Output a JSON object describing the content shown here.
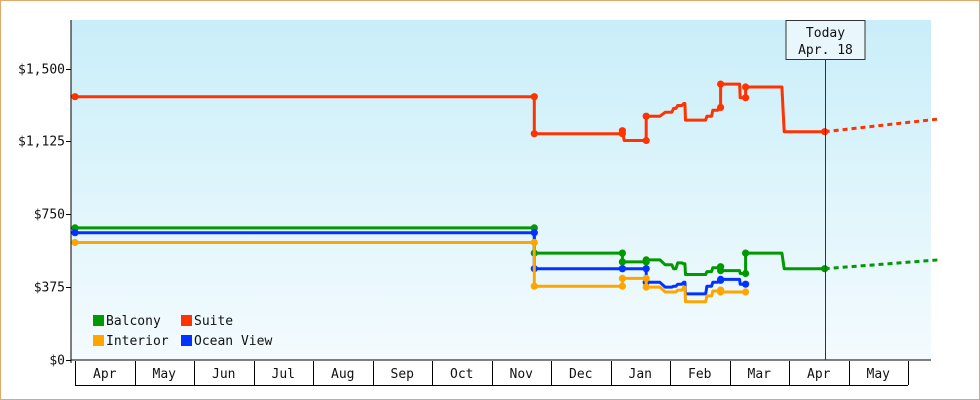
{
  "chart_data": {
    "type": "line",
    "y_ticks": [
      {
        "value": 0,
        "label": "$0"
      },
      {
        "value": 375,
        "label": "$375"
      },
      {
        "value": 750,
        "label": "$750"
      },
      {
        "value": 1125,
        "label": "$1,125"
      },
      {
        "value": 1500,
        "label": "$1,500"
      }
    ],
    "ylim": [
      0,
      1750
    ],
    "x_months": [
      "Apr",
      "May",
      "Jun",
      "Jul",
      "Aug",
      "Sep",
      "Oct",
      "Nov",
      "Dec",
      "Jan",
      "Feb",
      "Mar",
      "Apr",
      "May"
    ],
    "grid": false,
    "legend": {
      "placement": "bottom-left",
      "entries": [
        {
          "series": "Balcony",
          "label": "Balcony"
        },
        {
          "series": "Suite",
          "label": "Suite"
        },
        {
          "series": "Interior",
          "label": "Interior"
        },
        {
          "series": "Ocean View",
          "label": "Ocean View"
        }
      ]
    },
    "today": {
      "line1": "Today",
      "line2": "Apr. 18",
      "x": 12.6
    },
    "series": [
      {
        "name": "Suite",
        "color": "#ff3300",
        "points": [
          [
            0,
            1355
          ],
          [
            7.72,
            1355
          ],
          [
            7.72,
            1165
          ],
          [
            9.2,
            1165
          ],
          [
            9.2,
            1180
          ],
          [
            9.23,
            1130
          ],
          [
            9.37,
            1130
          ],
          [
            9.6,
            1130
          ],
          [
            9.6,
            1255
          ],
          [
            9.68,
            1255
          ],
          [
            9.83,
            1255
          ],
          [
            9.92,
            1275
          ],
          [
            10.03,
            1275
          ],
          [
            10.06,
            1295
          ],
          [
            10.1,
            1295
          ],
          [
            10.13,
            1310
          ],
          [
            10.2,
            1310
          ],
          [
            10.23,
            1320
          ],
          [
            10.25,
            1320
          ],
          [
            10.26,
            1235
          ],
          [
            10.45,
            1235
          ],
          [
            10.6,
            1235
          ],
          [
            10.62,
            1255
          ],
          [
            10.7,
            1255
          ],
          [
            10.72,
            1285
          ],
          [
            10.8,
            1285
          ],
          [
            10.83,
            1300
          ],
          [
            10.85,
            1300
          ],
          [
            10.85,
            1420
          ],
          [
            10.98,
            1420
          ],
          [
            11.17,
            1420
          ],
          [
            11.18,
            1350
          ],
          [
            11.27,
            1350
          ],
          [
            11.27,
            1405
          ],
          [
            11.4,
            1405
          ],
          [
            11.88,
            1405
          ],
          [
            11.92,
            1175
          ],
          [
            12.6,
            1175
          ]
        ],
        "projection": [
          [
            12.6,
            1175
          ],
          [
            14.5,
            1240
          ]
        ]
      },
      {
        "name": "Balcony",
        "color": "#009900",
        "points": [
          [
            0,
            680
          ],
          [
            7.72,
            680
          ],
          [
            7.72,
            550
          ],
          [
            9.2,
            550
          ],
          [
            9.2,
            505
          ],
          [
            9.37,
            505
          ],
          [
            9.6,
            505
          ],
          [
            9.6,
            515
          ],
          [
            9.68,
            515
          ],
          [
            9.83,
            515
          ],
          [
            9.92,
            490
          ],
          [
            10.03,
            490
          ],
          [
            10.06,
            470
          ],
          [
            10.1,
            470
          ],
          [
            10.13,
            500
          ],
          [
            10.2,
            500
          ],
          [
            10.23,
            495
          ],
          [
            10.25,
            495
          ],
          [
            10.26,
            440
          ],
          [
            10.45,
            440
          ],
          [
            10.6,
            440
          ],
          [
            10.62,
            455
          ],
          [
            10.7,
            455
          ],
          [
            10.72,
            475
          ],
          [
            10.8,
            475
          ],
          [
            10.83,
            480
          ],
          [
            10.85,
            480
          ],
          [
            10.85,
            460
          ],
          [
            10.98,
            460
          ],
          [
            11.17,
            460
          ],
          [
            11.18,
            445
          ],
          [
            11.27,
            445
          ],
          [
            11.27,
            550
          ],
          [
            11.4,
            550
          ],
          [
            11.88,
            550
          ],
          [
            11.92,
            470
          ],
          [
            12.6,
            470
          ]
        ],
        "projection": [
          [
            12.6,
            470
          ],
          [
            14.5,
            515
          ]
        ]
      },
      {
        "name": "Ocean View",
        "color": "#0033ff",
        "points": [
          [
            0,
            655
          ],
          [
            7.72,
            655
          ],
          [
            7.72,
            470
          ],
          [
            9.2,
            470
          ],
          [
            9.2,
            470
          ],
          [
            9.37,
            470
          ],
          [
            9.6,
            470
          ],
          [
            9.6,
            400
          ],
          [
            9.68,
            400
          ],
          [
            9.83,
            400
          ],
          [
            9.92,
            375
          ],
          [
            10.03,
            375
          ],
          [
            10.06,
            380
          ],
          [
            10.1,
            380
          ],
          [
            10.13,
            390
          ],
          [
            10.2,
            390
          ],
          [
            10.23,
            400
          ],
          [
            10.25,
            400
          ],
          [
            10.26,
            340
          ],
          [
            10.45,
            340
          ],
          [
            10.6,
            340
          ],
          [
            10.62,
            380
          ],
          [
            10.7,
            380
          ],
          [
            10.72,
            400
          ],
          [
            10.8,
            400
          ],
          [
            10.83,
            410
          ],
          [
            10.85,
            410
          ],
          [
            10.85,
            415
          ],
          [
            10.98,
            415
          ],
          [
            11.17,
            415
          ],
          [
            11.18,
            390
          ],
          [
            11.27,
            390
          ]
        ]
      },
      {
        "name": "Interior",
        "color": "#ffa500",
        "points": [
          [
            0,
            605
          ],
          [
            7.72,
            605
          ],
          [
            7.72,
            380
          ],
          [
            9.2,
            380
          ],
          [
            9.2,
            420
          ],
          [
            9.37,
            420
          ],
          [
            9.6,
            420
          ],
          [
            9.6,
            375
          ],
          [
            9.68,
            375
          ],
          [
            9.83,
            375
          ],
          [
            9.92,
            350
          ],
          [
            10.03,
            350
          ],
          [
            10.06,
            350
          ],
          [
            10.1,
            350
          ],
          [
            10.13,
            360
          ],
          [
            10.2,
            360
          ],
          [
            10.23,
            375
          ],
          [
            10.25,
            375
          ],
          [
            10.26,
            300
          ],
          [
            10.45,
            300
          ],
          [
            10.6,
            300
          ],
          [
            10.62,
            330
          ],
          [
            10.7,
            330
          ],
          [
            10.72,
            355
          ],
          [
            10.8,
            355
          ],
          [
            10.83,
            360
          ],
          [
            10.85,
            360
          ],
          [
            10.85,
            350
          ],
          [
            10.98,
            350
          ],
          [
            11.17,
            350
          ],
          [
            11.18,
            350
          ],
          [
            11.27,
            350
          ]
        ]
      }
    ]
  }
}
